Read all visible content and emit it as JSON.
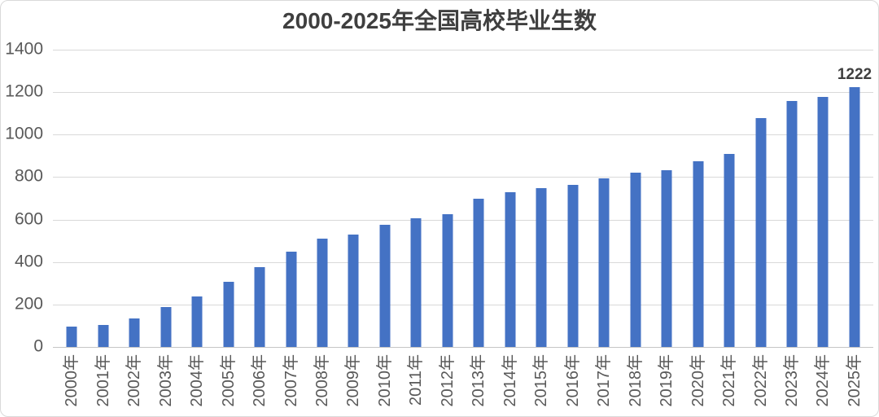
{
  "chart_data": {
    "type": "bar",
    "title": "2000-2025年全国高校毕业生数",
    "categories": [
      "2000年",
      "2001年",
      "2002年",
      "2003年",
      "2004年",
      "2005年",
      "2006年",
      "2007年",
      "2008年",
      "2009年",
      "2010年",
      "2011年",
      "2012年",
      "2013年",
      "2014年",
      "2015年",
      "2016年",
      "2017年",
      "2018年",
      "2019年",
      "2020年",
      "2021年",
      "2022年",
      "2023年",
      "2024年",
      "2025年"
    ],
    "values": [
      95,
      104,
      134,
      188,
      239,
      307,
      377,
      448,
      512,
      531,
      575,
      608,
      625,
      699,
      727,
      749,
      765,
      795,
      821,
      834,
      874,
      909,
      1076,
      1158,
      1179,
      1222
    ],
    "xlabel": "",
    "ylabel": "",
    "ylim": [
      0,
      1400
    ],
    "yticks": [
      0,
      200,
      400,
      600,
      800,
      1000,
      1200,
      1400
    ],
    "grid": "horizontal",
    "legend": "none",
    "data_label": {
      "category": "2025年",
      "text": "1222"
    },
    "colors": {
      "bar": "#4472c4",
      "gridline": "#d9d9d9",
      "axis_line": "#c6c6c6",
      "tick_label": "#595959",
      "title": "#3f3f3f",
      "data_label": "#3f3f3f",
      "background": "#ffffff",
      "border": "#d9d9d9"
    }
  }
}
